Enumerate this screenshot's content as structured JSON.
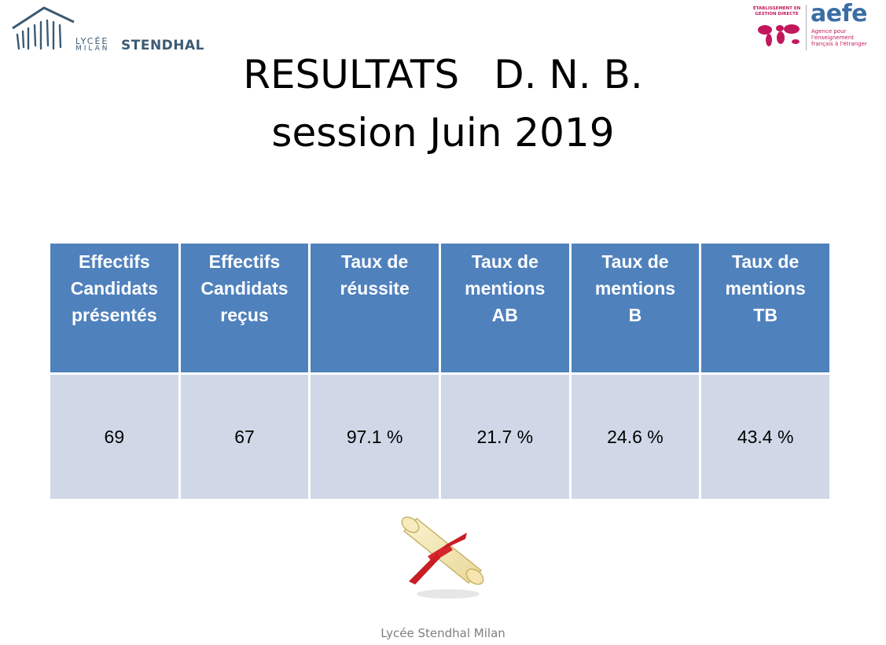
{
  "logo_left": {
    "lycee": "LYCÉE",
    "milan": "MILAN",
    "stendhal": "STENDHAL"
  },
  "logo_right": {
    "etab": "ÉTABLISSEMENT EN GESTION DIRECTE",
    "aefe": "aefe",
    "agence": "Agence pour l'enseignement français à l'étranger"
  },
  "title": {
    "line1a": "RESULTATS",
    "line1b": "D. N. B.",
    "line2": "session Juin 2019"
  },
  "table": {
    "headers": [
      [
        "Effectifs",
        "Candidats",
        "présentés"
      ],
      [
        "Effectifs",
        "Candidats",
        "reçus"
      ],
      [
        "Taux de",
        "réussite"
      ],
      [
        "Taux de",
        "mentions",
        "AB"
      ],
      [
        "Taux de",
        "mentions",
        "B"
      ],
      [
        "Taux de",
        "mentions",
        "TB"
      ]
    ],
    "values": [
      "69",
      "67",
      "97.1 %",
      "21.7 %",
      "24.6 %",
      "43.4 %"
    ]
  },
  "colors": {
    "header_bg": "#4f81bd",
    "cell_bg": "#d0d8e8",
    "logo_blue": "#3c5a73",
    "aefe_pink": "#c2185b"
  },
  "footer": "Lycée Stendhal Milan"
}
